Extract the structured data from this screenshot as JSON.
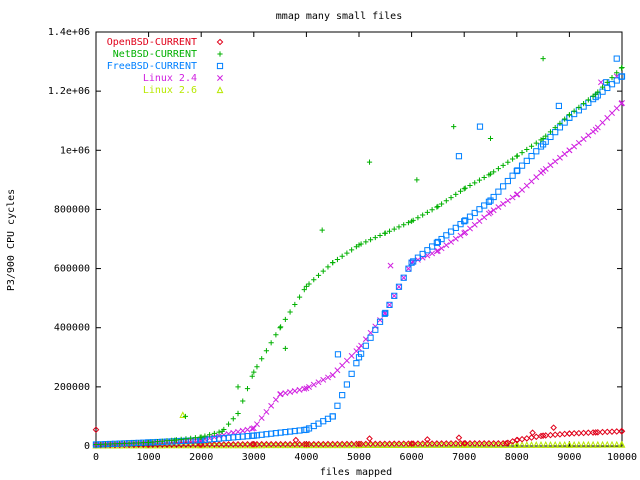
{
  "chart_data": {
    "type": "scatter",
    "title": "mmap many small files",
    "xlabel": "files mapped",
    "ylabel": "P3/900 CPU cycles",
    "xlim": [
      0,
      10000
    ],
    "ylim": [
      0,
      1400000
    ],
    "xticks": [
      0,
      1000,
      2000,
      3000,
      4000,
      5000,
      6000,
      7000,
      8000,
      9000,
      10000
    ],
    "xtick_labels": [
      "0",
      "1000",
      "2000",
      "3000",
      "4000",
      "5000",
      "6000",
      "7000",
      "8000",
      "9000",
      "10000"
    ],
    "yticks": [
      0,
      200000,
      400000,
      600000,
      800000,
      1000000,
      1200000,
      1400000
    ],
    "ytick_labels": [
      "0",
      "200000",
      "400000",
      "600000",
      "800000",
      "1e+06",
      "1.2e+06",
      "1.4e+06"
    ],
    "grid": false,
    "legend_position": "top-left",
    "series": [
      {
        "name": "OpenBSD-CURRENT",
        "color": "#e0001a",
        "marker": "diamond",
        "x": [
          0,
          1000,
          2000,
          3000,
          4000,
          5000,
          6000,
          7000,
          7800,
          8000,
          8500,
          9000,
          9500,
          10000
        ],
        "values": [
          3000,
          4000,
          5000,
          6000,
          6000,
          7000,
          8000,
          9000,
          9000,
          20000,
          35000,
          42000,
          46000,
          50000
        ],
        "outliers": [
          [
            0,
            55000
          ],
          [
            3800,
            20000
          ],
          [
            5200,
            25000
          ],
          [
            6300,
            22000
          ],
          [
            6900,
            28000
          ],
          [
            8300,
            45000
          ],
          [
            8700,
            62000
          ]
        ]
      },
      {
        "name": "NetBSD-CURRENT",
        "color": "#00b000",
        "marker": "plus",
        "x": [
          0,
          1000,
          1500,
          2000,
          2400,
          2700,
          3000,
          3500,
          4000,
          4500,
          5000,
          5500,
          6000,
          6500,
          7000,
          7500,
          8000,
          8500,
          9000,
          9500,
          10000
        ],
        "values": [
          5000,
          12000,
          20000,
          30000,
          50000,
          110000,
          250000,
          400000,
          540000,
          620000,
          680000,
          720000,
          760000,
          810000,
          870000,
          920000,
          980000,
          1040000,
          1120000,
          1190000,
          1280000
        ],
        "outliers": [
          [
            1700,
            100000
          ],
          [
            2700,
            200000
          ],
          [
            3600,
            330000
          ],
          [
            4300,
            730000
          ],
          [
            5200,
            960000
          ],
          [
            6100,
            900000
          ],
          [
            6800,
            1080000
          ],
          [
            7500,
            1040000
          ],
          [
            8500,
            1310000
          ]
        ]
      },
      {
        "name": "FreeBSD-CURRENT",
        "color": "#0080ff",
        "marker": "square",
        "x": [
          0,
          1000,
          2000,
          3000,
          4000,
          4500,
          5000,
          5500,
          6000,
          6500,
          7000,
          7500,
          8000,
          8500,
          9000,
          9500,
          10000
        ],
        "values": [
          5000,
          12000,
          20000,
          35000,
          55000,
          100000,
          300000,
          450000,
          620000,
          690000,
          760000,
          830000,
          930000,
          1020000,
          1110000,
          1180000,
          1250000
        ],
        "outliers": [
          [
            4600,
            310000
          ],
          [
            6900,
            980000
          ],
          [
            7300,
            1080000
          ],
          [
            8800,
            1150000
          ],
          [
            9700,
            1230000
          ],
          [
            9900,
            1310000
          ]
        ]
      },
      {
        "name": "Linux 2.4",
        "color": "#d020e0",
        "marker": "cross",
        "x": [
          0,
          1000,
          2000,
          3000,
          3500,
          4000,
          4500,
          5000,
          5500,
          6000,
          6500,
          7000,
          7500,
          8000,
          8500,
          9000,
          9500,
          10000
        ],
        "values": [
          5000,
          12000,
          20000,
          60000,
          175000,
          195000,
          240000,
          330000,
          450000,
          620000,
          660000,
          720000,
          790000,
          850000,
          930000,
          1000000,
          1070000,
          1160000
        ],
        "outliers": [
          [
            5600,
            610000
          ],
          [
            9600,
            1230000
          ],
          [
            9900,
            1250000
          ]
        ]
      },
      {
        "name": "Linux 2.6",
        "color": "#b8e800",
        "marker": "triangle",
        "x": [
          0,
          1000,
          2000,
          3000,
          4000,
          5000,
          6000,
          7000,
          8000,
          9000,
          10000
        ],
        "values": [
          2000,
          2500,
          3000,
          3000,
          3500,
          3500,
          4000,
          4000,
          4000,
          4500,
          5000
        ],
        "outliers": [
          [
            1650,
            105000
          ]
        ]
      }
    ]
  }
}
